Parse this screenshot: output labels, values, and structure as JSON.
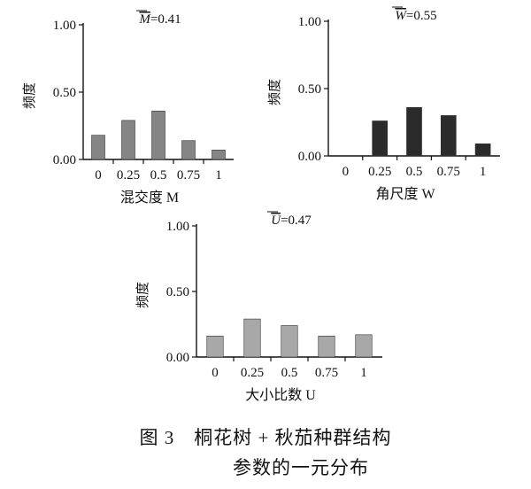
{
  "chart_data": [
    {
      "type": "bar",
      "categories": [
        "0",
        "0.25",
        "0.5",
        "0.75",
        "1"
      ],
      "values": [
        0.18,
        0.29,
        0.36,
        0.14,
        0.07
      ],
      "xlabel": "混交度 M",
      "ylabel": "频度",
      "ylim": [
        0,
        1
      ],
      "yticks": [
        "0.00",
        "0.50",
        "1.00"
      ],
      "mean_symbol": "M",
      "mean_value": "=0.41",
      "bar_color": "#858585"
    },
    {
      "type": "bar",
      "categories": [
        "0",
        "0.25",
        "0.5",
        "0.75",
        "1"
      ],
      "values": [
        0,
        0.26,
        0.36,
        0.3,
        0.09
      ],
      "xlabel": "角尺度 W",
      "ylabel": "频度",
      "ylim": [
        0,
        1
      ],
      "yticks": [
        "0.00",
        "0.50",
        "1.00"
      ],
      "mean_symbol": "W",
      "mean_value": "=0.55",
      "bar_color": "#2b2b2b"
    },
    {
      "type": "bar",
      "categories": [
        "0",
        "0.25",
        "0.5",
        "0.75",
        "1"
      ],
      "values": [
        0.16,
        0.29,
        0.24,
        0.16,
        0.17
      ],
      "xlabel": "大小比数 U",
      "ylabel": "频度",
      "ylim": [
        0,
        1
      ],
      "yticks": [
        "0.00",
        "0.50",
        "1.00"
      ],
      "mean_symbol": "U",
      "mean_value": "=0.47",
      "bar_color": "#a8a8a8"
    }
  ],
  "caption": {
    "line1": "图 3　桐花树 + 秋茄种群结构",
    "line2": "参数的一元分布"
  }
}
